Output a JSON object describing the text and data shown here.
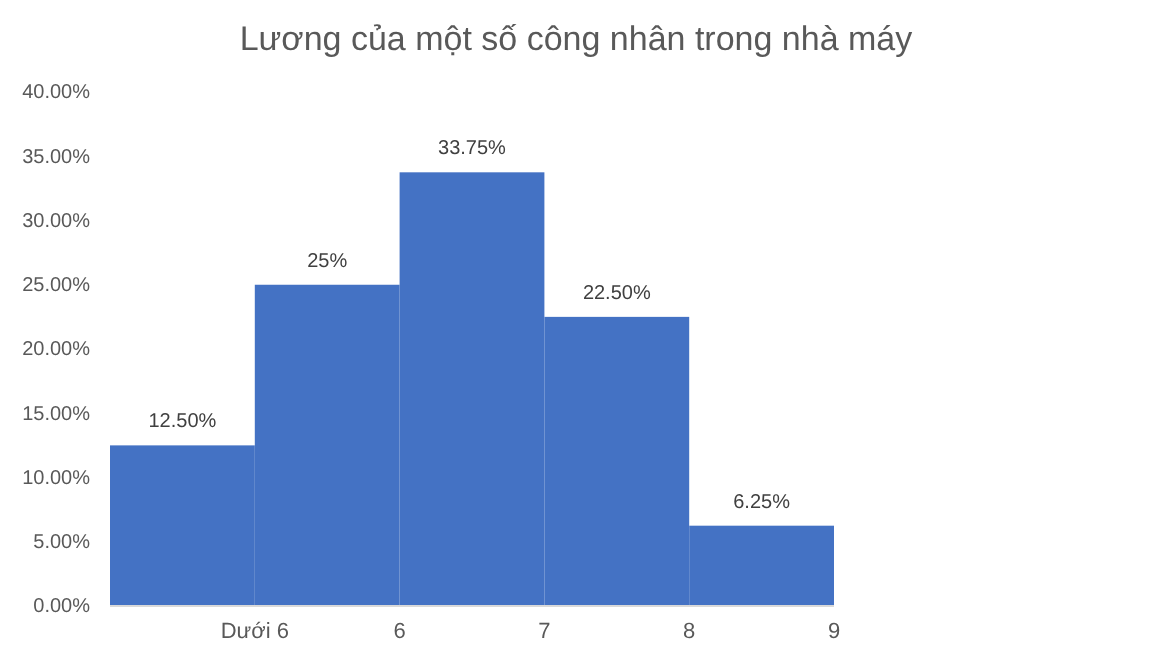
{
  "chart_data": {
    "type": "histogram",
    "title": "Lương của một số công nhân trong nhà máy",
    "bins": [
      4,
      5,
      6,
      7,
      8,
      9
    ],
    "values": [
      12.5,
      25,
      33.75,
      22.5,
      6.25
    ],
    "value_labels": [
      "12.50%",
      "25%",
      "33.75%",
      "22.50%",
      "6.25%"
    ],
    "color": "#4472c4",
    "xlim": [
      4,
      9
    ],
    "xticks": [
      {
        "value": 5,
        "label": "Dưới 6"
      },
      6,
      7,
      8,
      9
    ],
    "ylim": [
      0,
      40
    ],
    "yticks": [
      {
        "value": 0,
        "label": "0.00%"
      },
      {
        "value": 5,
        "label": "5.00%"
      },
      {
        "value": 10,
        "label": "10.00%"
      },
      {
        "value": 15,
        "label": "15.00%"
      },
      {
        "value": 20,
        "label": "20.00%"
      },
      {
        "value": 25,
        "label": "25.00%"
      },
      {
        "value": 30,
        "label": "30.00%"
      },
      {
        "value": 35,
        "label": "35.00%"
      },
      {
        "value": 40,
        "label": "40.00%"
      }
    ],
    "grid": false
  }
}
